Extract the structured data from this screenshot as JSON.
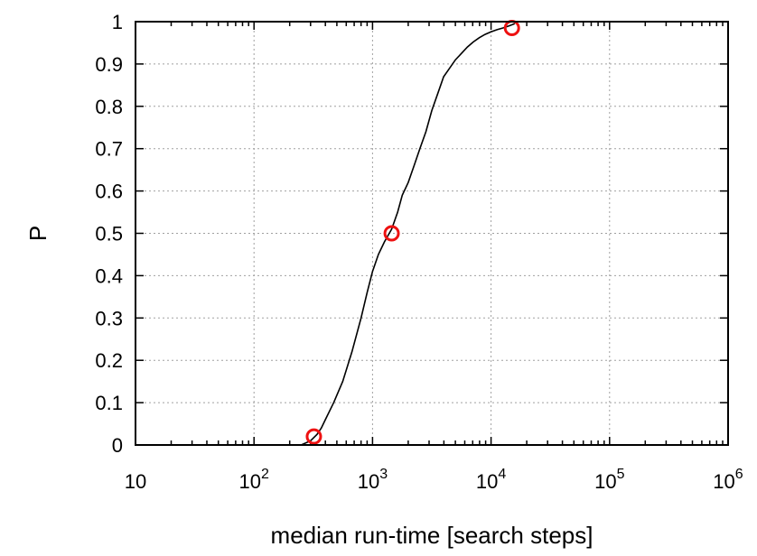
{
  "chart_data": {
    "type": "line",
    "title": "",
    "xlabel": "median run-time [search steps]",
    "ylabel": "P",
    "xscale": "log",
    "xlim": [
      10,
      1000000
    ],
    "ylim": [
      0,
      1
    ],
    "grid": true,
    "x_ticks": [
      {
        "value": 10,
        "base": "10",
        "exp": ""
      },
      {
        "value": 100,
        "base": "10",
        "exp": "2"
      },
      {
        "value": 1000,
        "base": "10",
        "exp": "3"
      },
      {
        "value": 10000,
        "base": "10",
        "exp": "4"
      },
      {
        "value": 100000,
        "base": "10",
        "exp": "5"
      },
      {
        "value": 1000000,
        "base": "10",
        "exp": "6"
      }
    ],
    "y_ticks": [
      {
        "value": 0,
        "label": "0"
      },
      {
        "value": 0.1,
        "label": "0.1"
      },
      {
        "value": 0.2,
        "label": "0.2"
      },
      {
        "value": 0.3,
        "label": "0.3"
      },
      {
        "value": 0.4,
        "label": "0.4"
      },
      {
        "value": 0.5,
        "label": "0.5"
      },
      {
        "value": 0.6,
        "label": "0.6"
      },
      {
        "value": 0.7,
        "label": "0.7"
      },
      {
        "value": 0.8,
        "label": "0.8"
      },
      {
        "value": 0.9,
        "label": "0.9"
      },
      {
        "value": 1,
        "label": "1"
      }
    ],
    "series": [
      {
        "color": "#000000",
        "x": [
          250,
          300,
          340,
          370,
          400,
          470,
          560,
          670,
          800,
          900,
          1000,
          1120,
          1260,
          1450,
          1630,
          1780,
          2000,
          2240,
          2510,
          2820,
          3160,
          3550,
          3980,
          4470,
          5010,
          5620,
          6310,
          7080,
          7940,
          8910,
          10000,
          11220,
          12590,
          14130,
          15850
        ],
        "y": [
          0.0,
          0.01,
          0.025,
          0.04,
          0.06,
          0.1,
          0.15,
          0.22,
          0.3,
          0.36,
          0.41,
          0.45,
          0.48,
          0.51,
          0.55,
          0.59,
          0.62,
          0.66,
          0.7,
          0.74,
          0.79,
          0.83,
          0.87,
          0.89,
          0.91,
          0.925,
          0.94,
          0.952,
          0.962,
          0.97,
          0.976,
          0.981,
          0.985,
          0.99,
          0.995
        ]
      }
    ],
    "markers": {
      "color": "#ee1111",
      "x": [
        320,
        1450,
        15000
      ],
      "y": [
        0.02,
        0.5,
        0.985
      ]
    }
  }
}
